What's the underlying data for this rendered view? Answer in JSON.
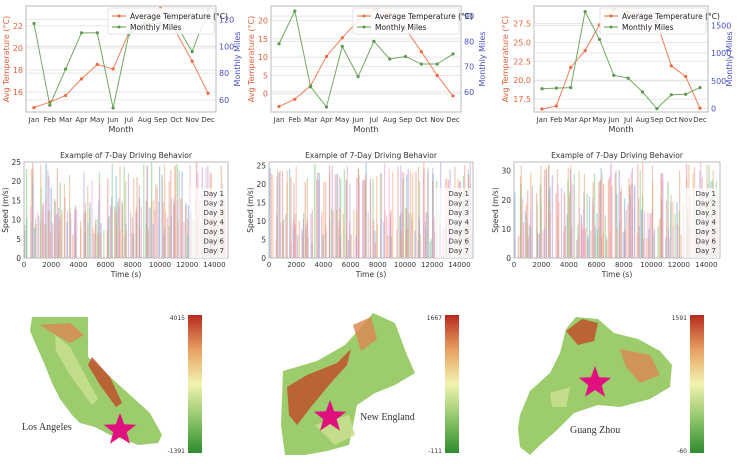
{
  "chart_data": [
    {
      "type": "line",
      "panel": "top-left",
      "xlabel": "Month",
      "ylabel": "Avg Temperature (°C)",
      "y2label": "Monthly Miles",
      "categories": [
        "Jan",
        "Feb",
        "Mar",
        "Apr",
        "May",
        "Jun",
        "Jul",
        "Aug",
        "Sep",
        "Oct",
        "Nov",
        "Dec"
      ],
      "ylim": [
        14.2,
        23.8
      ],
      "y2lim": [
        51,
        130
      ],
      "yticks": [
        16,
        18,
        20,
        22
      ],
      "y2ticks": [
        60,
        80,
        100,
        120
      ],
      "legend": "top-right",
      "grid": true,
      "series": [
        {
          "name": "Average Temperature (°C)",
          "axis": "left",
          "color": "#f0693c",
          "values": [
            14.6,
            15.1,
            15.7,
            17.2,
            18.5,
            18.1,
            21.4,
            22.3,
            23.6,
            21.4,
            18.8,
            15.9
          ]
        },
        {
          "name": "Monthly Miles",
          "axis": "right",
          "color": "#5a9a4a",
          "values": [
            117,
            56,
            83,
            110,
            110,
            54,
            109,
            117,
            117,
            116,
            96,
            127
          ]
        }
      ]
    },
    {
      "type": "line",
      "panel": "top-middle",
      "xlabel": "Month",
      "ylabel": "Avg Temperature (°C)",
      "y2label": "Monthly Miles",
      "categories": [
        "Jan",
        "Feb",
        "Mar",
        "Apr",
        "May",
        "Jun",
        "Jul",
        "Aug",
        "Sep",
        "Oct",
        "Nov",
        "Dec"
      ],
      "ylim": [
        -5,
        24
      ],
      "y2lim": [
        52,
        94
      ],
      "yticks": [
        0,
        5,
        10,
        15,
        20
      ],
      "y2ticks": [
        60,
        70,
        80,
        90
      ],
      "legend": "top-right",
      "grid": true,
      "series": [
        {
          "name": "Average Temperature (°C)",
          "axis": "left",
          "color": "#f0693c",
          "values": [
            -3.5,
            -1.5,
            2.2,
            10.2,
            15.3,
            20.0,
            23.0,
            22.0,
            17.8,
            11.5,
            5.0,
            -0.6
          ]
        },
        {
          "name": "Monthly Miles",
          "axis": "right",
          "color": "#5a9a4a",
          "values": [
            79,
            92,
            62,
            54,
            78,
            66,
            80,
            73,
            74,
            71,
            71,
            75
          ]
        }
      ]
    },
    {
      "type": "line",
      "panel": "top-right",
      "xlabel": "Month",
      "ylabel": "Avg Temperature (°C)",
      "y2label": "Monthly Miles",
      "categories": [
        "Jan",
        "Feb",
        "Mar",
        "Apr",
        "May",
        "Jun",
        "Jul",
        "Aug",
        "Sep",
        "Oct",
        "Nov",
        "Dec"
      ],
      "ylim": [
        15.8,
        29.8
      ],
      "y2lim": [
        -60,
        1850
      ],
      "yticks": [
        17.5,
        20.0,
        22.5,
        25.0,
        27.5
      ],
      "y2ticks": [
        0,
        500,
        1000,
        1500
      ],
      "legend": "top-right",
      "grid": true,
      "series": [
        {
          "name": "Average Temperature (°C)",
          "axis": "left",
          "color": "#f0693c",
          "values": [
            16.2,
            16.6,
            21.7,
            23.9,
            27.3,
            29.3,
            29.0,
            28.7,
            27.6,
            21.9,
            20.5,
            16.3
          ]
        },
        {
          "name": "Monthly Miles",
          "axis": "right",
          "color": "#5a9a4a",
          "values": [
            360,
            370,
            380,
            1750,
            1250,
            600,
            550,
            300,
            0,
            250,
            260,
            380
          ]
        }
      ]
    },
    {
      "type": "scatter",
      "panel": "middle-left",
      "title": "Example of 7-Day Driving Behavior",
      "xlabel": "Time (s)",
      "ylabel": "Speed (m/s)",
      "xlim": [
        0,
        15000
      ],
      "ylim": [
        0,
        25
      ],
      "xticks": [
        0,
        2000,
        4000,
        6000,
        8000,
        10000,
        12000,
        14000
      ],
      "yticks": [
        0,
        5,
        10,
        15,
        20,
        25
      ],
      "legend": "right",
      "pattern": "urban",
      "series": [
        {
          "name": "Day 1",
          "color": "#6fa8dc"
        },
        {
          "name": "Day 2",
          "color": "#f6a26b"
        },
        {
          "name": "Day 3",
          "color": "#7dcc7d"
        },
        {
          "name": "Day 4",
          "color": "#f08a8a"
        },
        {
          "name": "Day 5",
          "color": "#b89be0"
        },
        {
          "name": "Day 6",
          "color": "#d9a87c"
        },
        {
          "name": "Day 7",
          "color": "#f0a0d0"
        }
      ]
    },
    {
      "type": "scatter",
      "panel": "middle-center",
      "title": "Example of 7-Day Driving Behavior",
      "xlabel": "Time (s)",
      "ylabel": "Speed (m/s)",
      "xlim": [
        0,
        15000
      ],
      "ylim": [
        0,
        26
      ],
      "xticks": [
        0,
        2000,
        4000,
        6000,
        8000,
        10000,
        12000,
        14000
      ],
      "yticks": [
        0,
        5,
        10,
        15,
        20,
        25
      ],
      "legend": "right",
      "pattern": "highway",
      "series": [
        {
          "name": "Day 1",
          "color": "#6fa8dc"
        },
        {
          "name": "Day 2",
          "color": "#f6a26b"
        },
        {
          "name": "Day 3",
          "color": "#7dcc7d"
        },
        {
          "name": "Day 4",
          "color": "#f08a8a"
        },
        {
          "name": "Day 5",
          "color": "#b89be0"
        },
        {
          "name": "Day 6",
          "color": "#d9a87c"
        },
        {
          "name": "Day 7",
          "color": "#f0a0d0"
        }
      ]
    },
    {
      "type": "scatter",
      "panel": "middle-right",
      "title": "Example of 7-Day Driving Behavior",
      "xlabel": "Time (s)",
      "ylabel": "Speed (m/s)",
      "xlim": [
        0,
        15000
      ],
      "ylim": [
        0,
        33
      ],
      "xticks": [
        0,
        2000,
        4000,
        6000,
        8000,
        10000,
        12000,
        14000
      ],
      "yticks": [
        0,
        10,
        20,
        30
      ],
      "legend": "right",
      "pattern": "dense",
      "series": [
        {
          "name": "Day 1",
          "color": "#6fa8dc"
        },
        {
          "name": "Day 2",
          "color": "#f6a26b"
        },
        {
          "name": "Day 3",
          "color": "#7dcc7d"
        },
        {
          "name": "Day 4",
          "color": "#f08a8a"
        },
        {
          "name": "Day 5",
          "color": "#b89be0"
        },
        {
          "name": "Day 6",
          "color": "#d9a87c"
        },
        {
          "name": "Day 7",
          "color": "#f0a0d0"
        }
      ]
    },
    {
      "type": "heatmap",
      "panel": "bottom-left",
      "label": "Los Angeles",
      "colorbar_max": "4015",
      "colorbar_min": "-1391",
      "colormap": [
        "#2e8b2e",
        "#8fc66a",
        "#f3f3b0",
        "#e7a060",
        "#b52a1f"
      ],
      "marker": "star",
      "marker_color": "#e0117f"
    },
    {
      "type": "heatmap",
      "panel": "bottom-center",
      "label": "New England",
      "colorbar_max": "1667",
      "colorbar_min": "-111",
      "colormap": [
        "#2e8b2e",
        "#8fc66a",
        "#f3f3b0",
        "#e7a060",
        "#b52a1f"
      ],
      "marker": "star",
      "marker_color": "#e0117f"
    },
    {
      "type": "heatmap",
      "panel": "bottom-right",
      "label": "Guang Zhou",
      "colorbar_max": "1591",
      "colorbar_min": "-60",
      "colormap": [
        "#2e8b2e",
        "#8fc66a",
        "#f3f3b0",
        "#e7a060",
        "#b52a1f"
      ],
      "marker": "star",
      "marker_color": "#e0117f"
    }
  ],
  "colors": {
    "temp_axis": "#e8603c",
    "miles_axis": "#4a4fc8",
    "grid": "#e6e6e6",
    "frame": "#bbbbbb"
  }
}
